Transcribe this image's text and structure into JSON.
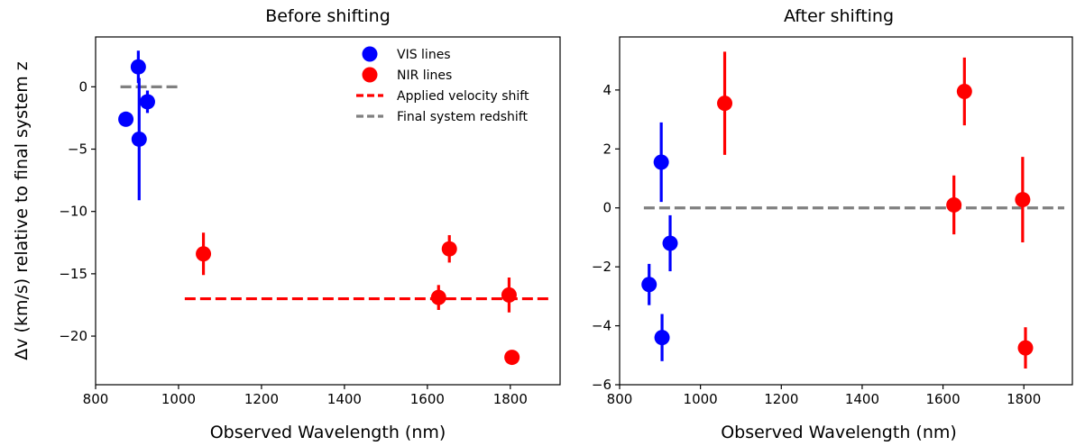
{
  "chart_data": [
    {
      "type": "scatter",
      "title": "Before shifting",
      "xlabel": "Observed Wavelength (nm)",
      "ylabel": "Δv (km/s) relative to final system z",
      "xlim": [
        800,
        1920
      ],
      "ylim": [
        -23.9,
        4.0
      ],
      "xticks": [
        800,
        1000,
        1200,
        1400,
        1600,
        1800
      ],
      "yticks": [
        0,
        -5,
        -10,
        -15,
        -20
      ],
      "ytick_labels": [
        "0",
        "−5",
        "−10",
        "−15",
        "−20"
      ],
      "grid": false,
      "legend_position": "top-right",
      "series": [
        {
          "name": "VIS lines",
          "color": "#0000ff",
          "x": [
            873,
            903,
            905,
            925
          ],
          "y": [
            -2.6,
            1.6,
            -4.2,
            -1.2
          ],
          "yerr": [
            0.6,
            1.3,
            4.9,
            0.9
          ]
        },
        {
          "name": "NIR lines",
          "color": "#ff0000",
          "x": [
            1060,
            1627,
            1653,
            1797,
            1804
          ],
          "y": [
            -13.4,
            -16.9,
            -13.0,
            -16.7,
            -21.7
          ],
          "yerr": [
            1.7,
            1.0,
            1.1,
            1.4,
            0.5
          ]
        }
      ],
      "lines": [
        {
          "name": "Applied velocity shift",
          "color": "#ff0000",
          "style": "dashed",
          "x": [
            1015,
            1900
          ],
          "y": [
            -17.0,
            -17.0
          ]
        },
        {
          "name": "Final system redshift",
          "color": "#808080",
          "style": "dashed",
          "x": [
            860,
            1000
          ],
          "y": [
            0,
            0
          ]
        }
      ]
    },
    {
      "type": "scatter",
      "title": "After shifting",
      "xlabel": "Observed Wavelength (nm)",
      "ylabel": "",
      "xlim": [
        800,
        1920
      ],
      "ylim": [
        -6.0,
        5.8
      ],
      "xticks": [
        800,
        1000,
        1200,
        1400,
        1600,
        1800
      ],
      "yticks": [
        4,
        2,
        0,
        -2,
        -4,
        -6
      ],
      "ytick_labels": [
        "4",
        "2",
        "0",
        "−2",
        "−4",
        "−6"
      ],
      "grid": false,
      "series": [
        {
          "name": "VIS lines",
          "color": "#0000ff",
          "x": [
            873,
            903,
            905,
            925
          ],
          "y": [
            -2.6,
            1.55,
            -4.4,
            -1.2
          ],
          "yerr": [
            0.7,
            1.35,
            0.8,
            0.95
          ]
        },
        {
          "name": "NIR lines",
          "color": "#ff0000",
          "x": [
            1060,
            1627,
            1653,
            1797,
            1804
          ],
          "y": [
            3.55,
            0.1,
            3.95,
            0.28,
            -4.75
          ],
          "yerr": [
            1.75,
            1.0,
            1.15,
            1.45,
            0.7
          ]
        }
      ],
      "lines": [
        {
          "name": "Final system redshift",
          "color": "#808080",
          "style": "dashed",
          "x": [
            860,
            1900
          ],
          "y": [
            0,
            0
          ]
        }
      ]
    }
  ]
}
